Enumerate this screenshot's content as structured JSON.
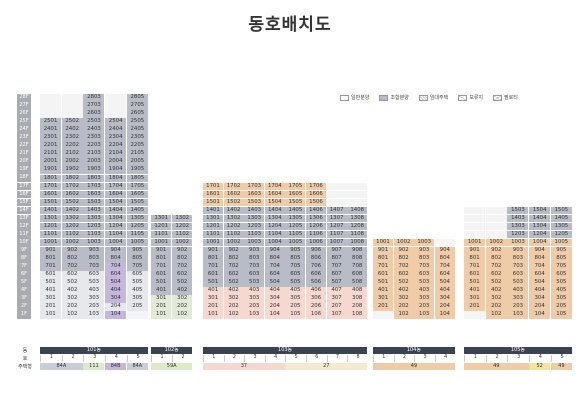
{
  "title": "동호배치도",
  "legend": [
    {
      "label": "일반분양",
      "color": "#ffffff",
      "icon": "blank-swatch"
    },
    {
      "label": "조합분양",
      "color": "#b7bcc6",
      "icon": "gray-swatch"
    },
    {
      "label": "임대주택",
      "color": "#d9d9d9",
      "icon": "hatched-swatch"
    },
    {
      "label": "보류지",
      "color": "#ffffff",
      "icon": "slash-swatch"
    },
    {
      "label": "필로티",
      "color": "#ffffff",
      "icon": "cross-swatch"
    }
  ],
  "floors": [
    "28F",
    "27F",
    "26F",
    "25F",
    "24F",
    "23F",
    "22F",
    "21F",
    "20F",
    "19F",
    "18F",
    "17F",
    "16F",
    "15F",
    "14F",
    "13F",
    "12F",
    "11F",
    "10F",
    "9F",
    "8F",
    "7F",
    "6F",
    "5F",
    "4F",
    "3F",
    "2F",
    "1F"
  ],
  "row_labels": {
    "dong": "동",
    "ho": "호",
    "type": "주택형"
  },
  "buildings": [
    {
      "name": "101동",
      "ho": [
        "1",
        "2",
        "3",
        "4",
        "5"
      ],
      "types": [
        {
          "label": "84A",
          "span": 2,
          "color": "#c9cdd6"
        },
        {
          "label": "111",
          "span": 1,
          "color": "#dcebc7"
        },
        {
          "label": "84B",
          "span": 1,
          "color": "#c6b5dd"
        },
        {
          "label": "84A",
          "span": 1,
          "color": "#c9cdd6"
        }
      ]
    },
    {
      "name": "102동",
      "ho": [
        "1",
        "2"
      ],
      "types": [
        {
          "label": "59A",
          "span": 2,
          "color": "#dcebc7"
        }
      ]
    },
    {
      "name": "103동",
      "ho": [
        "1",
        "2",
        "3",
        "4",
        "5",
        "6",
        "7",
        "8"
      ],
      "types": [
        {
          "label": "37",
          "span": 4,
          "color": "#f6d8d0"
        },
        {
          "label": "27",
          "span": 4,
          "color": "#f3ead0"
        }
      ]
    },
    {
      "name": "104동",
      "ho": [
        "1",
        "2",
        "3",
        "4"
      ],
      "types": [
        {
          "label": "49",
          "span": 4,
          "color": "#f0cba7"
        }
      ]
    },
    {
      "name": "105동",
      "ho": [
        "1",
        "2",
        "3",
        "4",
        "5"
      ],
      "types": [
        {
          "label": "49",
          "span": 3,
          "color": "#f0cba7"
        },
        {
          "label": "52",
          "span": 1,
          "color": "#f4e39a"
        },
        {
          "label": "49",
          "span": 1,
          "color": "#f0cba7"
        }
      ]
    }
  ],
  "units": {
    "b101": [
      [
        "",
        "",
        "2803",
        "",
        "2805"
      ],
      [
        "",
        "",
        "2703",
        "",
        "2705"
      ],
      [
        "",
        "",
        "2603",
        "",
        "2605"
      ],
      [
        "2501",
        "2502",
        "2503",
        "2504",
        "2505"
      ],
      [
        "2401",
        "2402",
        "2403",
        "2404",
        "2405"
      ],
      [
        "2301",
        "2302",
        "2303",
        "2304",
        "2305"
      ],
      [
        "2201",
        "2202",
        "2203",
        "2204",
        "2205"
      ],
      [
        "2101",
        "2102",
        "2103",
        "2104",
        "2105"
      ],
      [
        "2001",
        "2002",
        "2003",
        "2004",
        "2005"
      ],
      [
        "1901",
        "1902",
        "1903",
        "1904",
        "1905"
      ],
      [
        "1801",
        "1802",
        "1803",
        "1804",
        "1805"
      ],
      [
        "1701",
        "1702",
        "1703",
        "1704",
        "1705"
      ],
      [
        "1601",
        "1602",
        "1603",
        "1604",
        "1605"
      ],
      [
        "1501",
        "1502",
        "1503",
        "1504",
        "1505"
      ],
      [
        "1401",
        "1402",
        "1403",
        "1404",
        "1405"
      ],
      [
        "1301",
        "1302",
        "1303",
        "1304",
        "1305"
      ],
      [
        "1201",
        "1202",
        "1203",
        "1204",
        "1205"
      ],
      [
        "1101",
        "1102",
        "1103",
        "1104",
        "1105"
      ],
      [
        "1001",
        "1002",
        "1003",
        "1004",
        "1005"
      ],
      [
        "901",
        "902",
        "903",
        "904",
        "905"
      ],
      [
        "801",
        "802",
        "803",
        "804",
        "805"
      ],
      [
        "701",
        "702",
        "703",
        "704",
        "705"
      ],
      [
        "601",
        "602",
        "603",
        "604",
        "605"
      ],
      [
        "501",
        "502",
        "503",
        "504",
        "505"
      ],
      [
        "401",
        "402",
        "403",
        "404",
        "405"
      ],
      [
        "301",
        "302",
        "303",
        "304",
        "305"
      ],
      [
        "201",
        "202",
        "203",
        "204",
        "205"
      ],
      [
        "101",
        "102",
        "103",
        "104",
        ""
      ]
    ],
    "b102": [
      [
        "1301",
        "1302"
      ],
      [
        "1201",
        "1202"
      ],
      [
        "1101",
        "1102"
      ],
      [
        "1001",
        "1002"
      ],
      [
        "901",
        "902"
      ],
      [
        "801",
        "802"
      ],
      [
        "701",
        "702"
      ],
      [
        "601",
        "602"
      ],
      [
        "501",
        "502"
      ],
      [
        "401",
        "402"
      ],
      [
        "301",
        "302"
      ],
      [
        "201",
        "202"
      ],
      [
        "101",
        "102"
      ]
    ],
    "b103": [
      [
        "1701",
        "1702",
        "1703",
        "1704",
        "1705",
        "1706",
        "",
        ""
      ],
      [
        "1601",
        "1602",
        "1603",
        "1604",
        "1605",
        "1606",
        "",
        ""
      ],
      [
        "1501",
        "1502",
        "1503",
        "1504",
        "1505",
        "1506",
        "",
        ""
      ],
      [
        "1401",
        "1402",
        "1403",
        "1404",
        "1405",
        "1406",
        "1407",
        "1408"
      ],
      [
        "1301",
        "1302",
        "1303",
        "1304",
        "1305",
        "1306",
        "1307",
        "1308"
      ],
      [
        "1201",
        "1202",
        "1203",
        "1204",
        "1205",
        "1206",
        "1207",
        "1208"
      ],
      [
        "1101",
        "1102",
        "1103",
        "1104",
        "1105",
        "1106",
        "1107",
        "1108"
      ],
      [
        "1001",
        "1002",
        "1003",
        "1004",
        "1005",
        "1006",
        "1007",
        "1008"
      ],
      [
        "901",
        "902",
        "903",
        "904",
        "905",
        "906",
        "907",
        "908"
      ],
      [
        "801",
        "802",
        "803",
        "804",
        "805",
        "806",
        "807",
        "808"
      ],
      [
        "701",
        "702",
        "703",
        "704",
        "705",
        "706",
        "707",
        "708"
      ],
      [
        "601",
        "602",
        "603",
        "604",
        "605",
        "606",
        "607",
        "608"
      ],
      [
        "501",
        "502",
        "503",
        "504",
        "505",
        "506",
        "507",
        "508"
      ],
      [
        "401",
        "402",
        "403",
        "404",
        "405",
        "406",
        "407",
        "408"
      ],
      [
        "301",
        "302",
        "303",
        "304",
        "305",
        "306",
        "307",
        "308"
      ],
      [
        "201",
        "202",
        "203",
        "204",
        "205",
        "206",
        "207",
        "208"
      ],
      [
        "101",
        "102",
        "103",
        "104",
        "105",
        "106",
        "107",
        "108"
      ]
    ],
    "b104": [
      [
        "1001",
        "1002",
        "1003",
        ""
      ],
      [
        "901",
        "902",
        "903",
        "904"
      ],
      [
        "801",
        "802",
        "803",
        "804"
      ],
      [
        "701",
        "702",
        "703",
        "704"
      ],
      [
        "601",
        "602",
        "603",
        "604"
      ],
      [
        "501",
        "502",
        "503",
        "504"
      ],
      [
        "401",
        "402",
        "403",
        "404"
      ],
      [
        "301",
        "302",
        "303",
        "304"
      ],
      [
        "201",
        "202",
        "203",
        "204"
      ],
      [
        "",
        "102",
        "103",
        "104"
      ]
    ],
    "b105": [
      [
        "",
        "",
        "1503",
        "1504",
        "1505"
      ],
      [
        "",
        "",
        "1403",
        "1404",
        "1405"
      ],
      [
        "",
        "",
        "1303",
        "1304",
        "1305"
      ],
      [
        "",
        "",
        "1203",
        "1204",
        "1205"
      ],
      [
        "1001",
        "1002",
        "1003",
        "1004",
        "1005"
      ],
      [
        "901",
        "902",
        "903",
        "904",
        "905"
      ],
      [
        "801",
        "802",
        "803",
        "804",
        "805"
      ],
      [
        "701",
        "702",
        "703",
        "704",
        "705"
      ],
      [
        "601",
        "602",
        "603",
        "604",
        "605"
      ],
      [
        "501",
        "502",
        "503",
        "504",
        "505"
      ],
      [
        "401",
        "402",
        "403",
        "404",
        "405"
      ],
      [
        "301",
        "302",
        "303",
        "304",
        "305"
      ],
      [
        "201",
        "202",
        "203",
        "204",
        "205"
      ],
      [
        "",
        "102",
        "103",
        "104",
        "105"
      ]
    ]
  }
}
